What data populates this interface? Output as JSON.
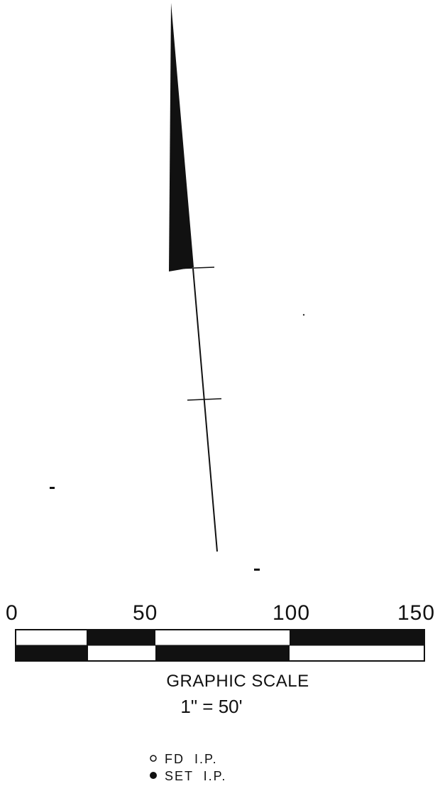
{
  "north_arrow": {
    "tick_count": 2
  },
  "graphic_scale": {
    "ticks": [
      "0",
      "50",
      "100",
      "150"
    ],
    "title": "GRAPHIC SCALE",
    "ratio": "1\" = 50'"
  },
  "legend": {
    "items": [
      {
        "symbol": "open-circle",
        "label": "FD  I.P."
      },
      {
        "symbol": "filled-circle",
        "label": "SET  I.P."
      }
    ]
  },
  "colors": {
    "ink": "#111111",
    "paper": "#ffffff"
  }
}
